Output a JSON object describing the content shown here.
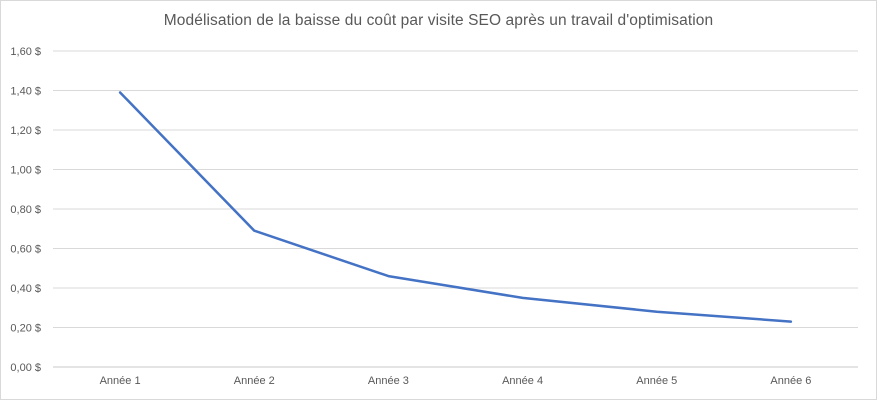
{
  "chart_data": {
    "type": "line",
    "title": "Modélisation de la baisse du coût par visite SEO après un travail d'optimisation",
    "categories": [
      "Année 1",
      "Année 2",
      "Année 3",
      "Année 4",
      "Année 5",
      "Année 6"
    ],
    "values": [
      1.39,
      0.69,
      0.46,
      0.35,
      0.28,
      0.23
    ],
    "xlabel": "",
    "ylabel": "",
    "ylim": [
      0,
      1.6
    ],
    "y_ticks": [
      {
        "value": 0.0,
        "label": "0,00 $"
      },
      {
        "value": 0.2,
        "label": "0,20 $"
      },
      {
        "value": 0.4,
        "label": "0,40 $"
      },
      {
        "value": 0.6,
        "label": "0,60 $"
      },
      {
        "value": 0.8,
        "label": "0,80 $"
      },
      {
        "value": 1.0,
        "label": "1,00 $"
      },
      {
        "value": 1.2,
        "label": "1,20 $"
      },
      {
        "value": 1.4,
        "label": "1,40 $"
      },
      {
        "value": 1.6,
        "label": "1,60 $"
      }
    ],
    "grid": true,
    "legend": "none",
    "markers": "none",
    "colors": {
      "line": "#4472C4",
      "gridline": "#D9D9D9",
      "axis_line": "#C8C8C8",
      "text": "#595959",
      "background": "#FFFFFF",
      "border": "#D9D9D9"
    }
  }
}
